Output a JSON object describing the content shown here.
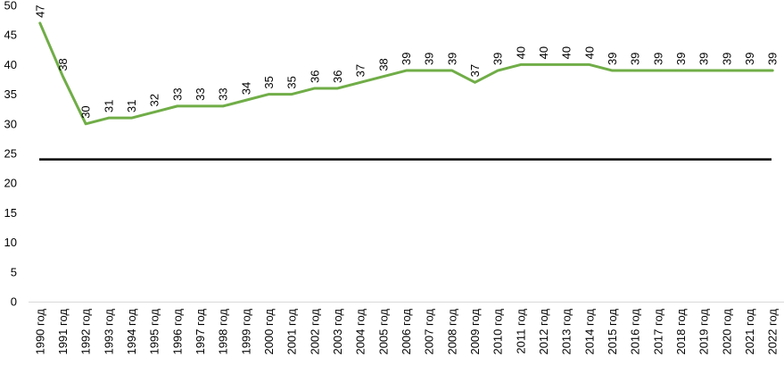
{
  "chart_data": {
    "type": "line",
    "title": "",
    "xlabel": "",
    "ylabel": "",
    "ylim": [
      0,
      50
    ],
    "yticks": [
      0,
      5,
      10,
      15,
      20,
      25,
      30,
      35,
      40,
      45,
      50
    ],
    "grid": false,
    "legend": "none",
    "categories": [
      "1990 год",
      "1991 год",
      "1992 год",
      "1993 год",
      "1994 год",
      "1995 год",
      "1996 год",
      "1997 год",
      "1998 год",
      "1999 год",
      "2000 год",
      "2001 год",
      "2002 год",
      "2003 год",
      "2004 год",
      "2005 год",
      "2006 год",
      "2007 год",
      "2008 год",
      "2009 год",
      "2010 год",
      "2011 год",
      "2012 год",
      "2013 год",
      "2014 год",
      "2015 год",
      "2016 год",
      "2017 год",
      "2018 год",
      "2019 год",
      "2020 год",
      "2021 год",
      "2022 год"
    ],
    "series": [
      {
        "color": "#70AD47",
        "values": [
          47,
          38,
          30,
          31,
          31,
          32,
          33,
          33,
          33,
          34,
          35,
          35,
          36,
          36,
          37,
          38,
          39,
          39,
          39,
          37,
          39,
          40,
          40,
          40,
          40,
          39,
          39,
          39,
          39,
          39,
          39,
          39,
          39
        ]
      }
    ],
    "reference_lines": [
      {
        "y": 24,
        "color": "#000000"
      }
    ]
  }
}
